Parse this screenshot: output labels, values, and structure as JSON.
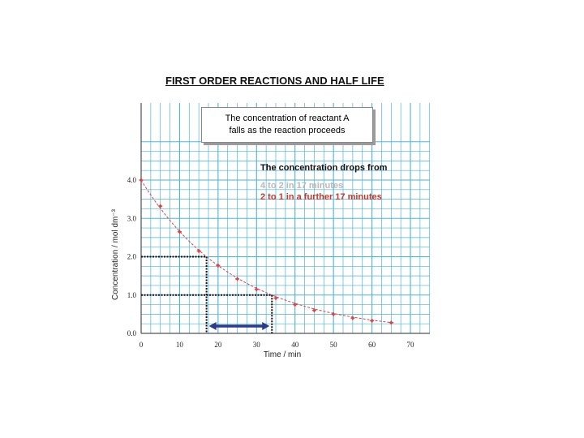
{
  "title": "FIRST ORDER REACTIONS AND HALF LIFE",
  "callout": {
    "line1": "The concentration of reactant A",
    "line2": "falls as the reaction proceeds"
  },
  "note": {
    "heading": "The concentration drops from",
    "line1": "4 to 2 in 17 minutes",
    "line2": "2 to 1 in a further 17 minutes",
    "line1_color": "#b9b9b9",
    "line2_color": "#c0392b"
  },
  "colors": {
    "grid": "#4ab3d8",
    "data": "#d64545",
    "guide": "#111111",
    "arrow": "#2b3a8c"
  },
  "chart_data": {
    "type": "scatter",
    "x": [
      0,
      5,
      10,
      15,
      20,
      25,
      30,
      35,
      40,
      45,
      50,
      55,
      60,
      65
    ],
    "series": [
      {
        "values": [
          4.0,
          3.32,
          2.65,
          2.15,
          1.77,
          1.42,
          1.15,
          0.92,
          0.75,
          0.6,
          0.5,
          0.4,
          0.33,
          0.28
        ]
      }
    ],
    "fit_curve": true,
    "xlabel": "Time / min",
    "ylabel": "Concentration / mol dm⁻³",
    "xlim": [
      0,
      75
    ],
    "ylim": [
      0,
      5.0
    ],
    "xticks": [
      "0",
      "10",
      "20",
      "30",
      "40",
      "50",
      "60",
      "70"
    ],
    "yticks": [
      "0.0",
      "1.0",
      "2.0",
      "3.0",
      "4.0"
    ],
    "half_life_guides": [
      {
        "y": 2.0,
        "x": 17
      },
      {
        "y": 1.0,
        "x": 34
      }
    ],
    "arrow": {
      "from": 17,
      "to": 34
    },
    "grid": true
  }
}
